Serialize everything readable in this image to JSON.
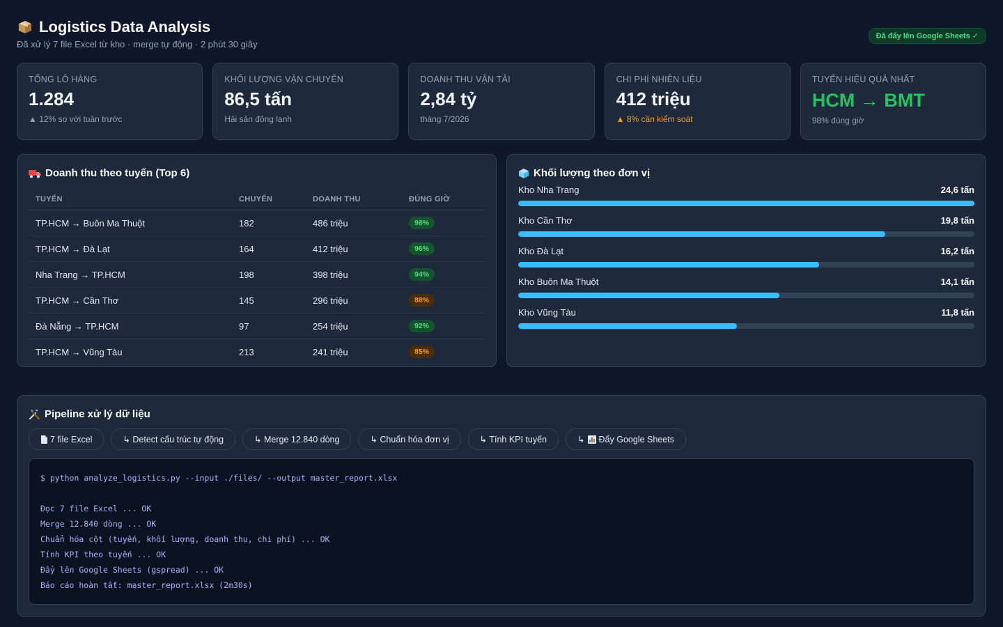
{
  "header": {
    "title": "Logistics Data Analysis",
    "subtitle": "Đã xử lý 7 file Excel từ kho · merge tự động · 2 phút 30 giây",
    "badge": "Đã đẩy lên Google Sheets ✓"
  },
  "kpis": [
    {
      "label": "Tổng lô hàng",
      "value": "1.284",
      "sub": "▲ 12% so với tuần trước"
    },
    {
      "label": "Khối lượng vận chuyển",
      "value": "86,5 tấn",
      "sub": "Hải sản đông lạnh"
    },
    {
      "label": "Doanh thu vận tải",
      "value": "2,84 tỷ",
      "sub": "tháng 7/2026"
    },
    {
      "label": "Chi phí nhiên liệu",
      "value": "412 triệu",
      "sub": "▲ 8% cần kiểm soát"
    },
    {
      "label": "Tuyến hiệu quả nhất",
      "value": "HCM → BMT",
      "sub": "98% đúng giờ"
    }
  ],
  "routes": {
    "title": "Doanh thu theo tuyến (Top 6)",
    "headers": [
      "Tuyến",
      "Chuyến",
      "Doanh thu",
      "Đúng giờ"
    ],
    "rows": [
      {
        "route": "TP.HCM → Buôn Ma Thuột",
        "trips": "182",
        "revenue": "486 triệu",
        "ontime": "98%",
        "status": "good"
      },
      {
        "route": "TP.HCM → Đà Lạt",
        "trips": "164",
        "revenue": "412 triệu",
        "ontime": "96%",
        "status": "good"
      },
      {
        "route": "Nha Trang → TP.HCM",
        "trips": "198",
        "revenue": "398 triệu",
        "ontime": "94%",
        "status": "good"
      },
      {
        "route": "TP.HCM → Cần Thơ",
        "trips": "145",
        "revenue": "296 triệu",
        "ontime": "88%",
        "status": "warn"
      },
      {
        "route": "Đà Nẵng → TP.HCM",
        "trips": "97",
        "revenue": "254 triệu",
        "ontime": "92%",
        "status": "good"
      },
      {
        "route": "TP.HCM → Vũng Tàu",
        "trips": "213",
        "revenue": "241 triệu",
        "ontime": "85%",
        "status": "warn"
      }
    ],
    "colors": {
      "good": "#4ade80",
      "warn": "#f59e0b"
    }
  },
  "volume": {
    "title": "Khối lượng theo đơn vị",
    "items": [
      {
        "name": "Kho Nha Trang",
        "value": "24,6 tấn",
        "fraction": 1.0
      },
      {
        "name": "Kho Cần Thơ",
        "value": "19,8 tấn",
        "fraction": 0.805
      },
      {
        "name": "Kho Đà Lạt",
        "value": "16,2 tấn",
        "fraction": 0.659
      },
      {
        "name": "Kho Buôn Ma Thuột",
        "value": "14,1 tấn",
        "fraction": 0.573
      },
      {
        "name": "Kho Vũng Tàu",
        "value": "11,8 tấn",
        "fraction": 0.48
      }
    ],
    "bar_color": "#38bdf8"
  },
  "pipeline": {
    "title": "Pipeline xử lý dữ liệu",
    "steps": [
      {
        "label": "7 file Excel",
        "icon": "file-icon"
      },
      {
        "label": "↳ Detect cấu trúc tự động"
      },
      {
        "label": "↳ Merge 12.840 dòng"
      },
      {
        "label": "↳ Chuẩn hóa đơn vị"
      },
      {
        "label": "↳ Tính KPI tuyến"
      },
      {
        "label": "Đẩy Google Sheets",
        "prefix": "↳",
        "icon": "chart-icon"
      }
    ],
    "terminal": {
      "command": "$ python analyze_logistics.py --input ./files/ --output master_report.xlsx",
      "lines": [
        "Đọc 7 file Excel ... OK",
        "Merge 12.840 dòng ... OK",
        "Chuẩn hóa cột (tuyến, khối lượng, doanh thu, chi phí) ... OK",
        "Tính KPI theo tuyến ... OK",
        "Đẩy lên Google Sheets (gspread) ... OK",
        "Báo cáo hoàn tất: master_report.xlsx (2m30s)"
      ]
    }
  }
}
